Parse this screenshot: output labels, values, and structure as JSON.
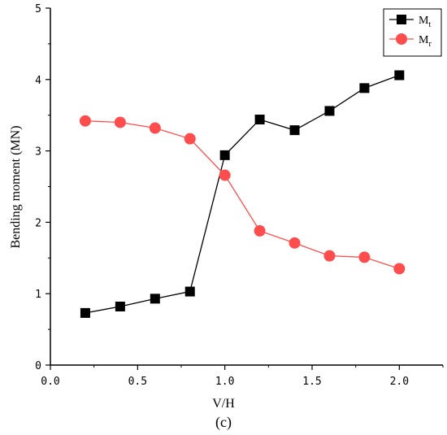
{
  "chart_data": {
    "type": "line",
    "x": [
      0.2,
      0.4,
      0.6,
      0.8,
      1.0,
      1.2,
      1.4,
      1.6,
      1.8,
      2.0
    ],
    "series": [
      {
        "name": "Mt",
        "name_main": "M",
        "name_sub": "t",
        "color": "#000000",
        "marker": "square",
        "values": [
          0.73,
          0.82,
          0.93,
          1.03,
          2.94,
          3.44,
          3.29,
          3.56,
          3.88,
          4.06
        ]
      },
      {
        "name": "Mr",
        "name_main": "M",
        "name_sub": "r",
        "color": "#ff4d4d",
        "marker": "circle",
        "values": [
          3.42,
          3.4,
          3.32,
          3.17,
          2.66,
          1.88,
          1.71,
          1.53,
          1.51,
          1.35
        ]
      }
    ],
    "xlabel": "V/H",
    "ylabel": "Bending moment (MN)",
    "xlim": [
      0.0,
      2.25
    ],
    "ylim": [
      0,
      5
    ],
    "xticks": [
      "0.0",
      "0.5",
      "1.0",
      "1.5",
      "2.0"
    ],
    "yticks": [
      "0",
      "1",
      "2",
      "3",
      "4",
      "5"
    ],
    "grid": false,
    "legend_position": "top-right",
    "caption": "(c)"
  }
}
